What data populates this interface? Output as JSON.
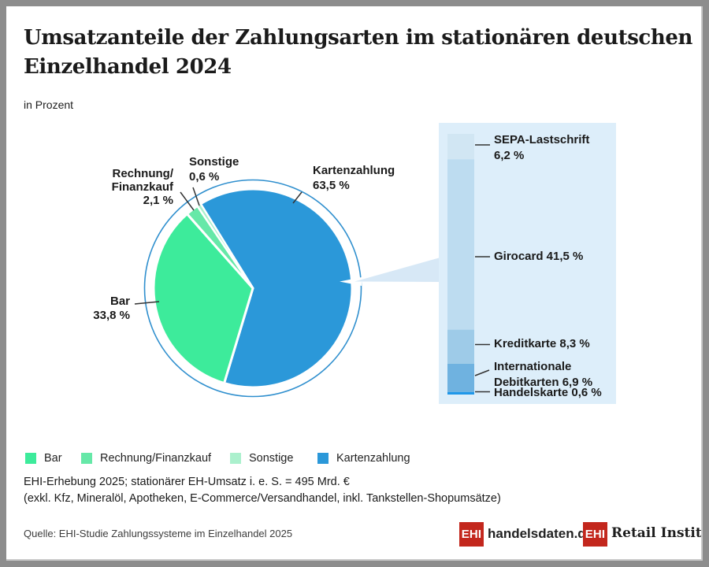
{
  "header": {
    "title_line1": "Umsatzanteile der Zahlungsarten im stationären deutschen",
    "title_line2": "Einzelhandel 2024",
    "subtitle": "in Prozent"
  },
  "chart_data": {
    "type": "pie",
    "title": "Umsatzanteile der Zahlungsarten im stationären deutschen Einzelhandel 2024",
    "unit": "Prozent",
    "series": [
      {
        "name": "Bar",
        "value": 33.8,
        "display": "33,8 %",
        "color": "#3deb9b",
        "label_lines": [
          "Bar",
          "33,8 %"
        ]
      },
      {
        "name": "Rechnung/Finanzkauf",
        "value": 2.1,
        "display": "2,1 %",
        "color": "#66e8a8",
        "label_lines": [
          "Rechnung/",
          "Finanzkauf",
          "2,1 %"
        ]
      },
      {
        "name": "Sonstige",
        "value": 0.6,
        "display": "0,6 %",
        "color": "#abf0cd",
        "label_lines": [
          "Sonstige",
          "0,6 %"
        ]
      },
      {
        "name": "Kartenzahlung",
        "value": 63.5,
        "display": "63,5 %",
        "color": "#2b98d9",
        "label_lines": [
          "Kartenzahlung",
          "63,5 %"
        ]
      }
    ],
    "breakdown_of": "Kartenzahlung",
    "breakdown": [
      {
        "name": "SEPA-Lastschrift",
        "value": 6.2,
        "display": "6,2 %",
        "color": "#d1e6f3",
        "label_lines": [
          "SEPA-Lastschrift",
          "6,2 %"
        ]
      },
      {
        "name": "Girocard",
        "value": 41.5,
        "display": "41,5 %",
        "color": "#bddcf0",
        "label_lines": [
          "Girocard 41,5 %"
        ]
      },
      {
        "name": "Kreditkarte",
        "value": 8.3,
        "display": "8,3 %",
        "color": "#9ecbe8",
        "label_lines": [
          "Kreditkarte 8,3 %"
        ]
      },
      {
        "name": "Internationale Debitkarten",
        "value": 6.9,
        "display": "6,9 %",
        "color": "#6fb2e0",
        "label_lines": [
          "Internationale",
          "Debitkarten 6,9 %"
        ]
      },
      {
        "name": "Handelskarte",
        "value": 0.6,
        "display": "0,6 %",
        "color": "#1f97e9",
        "label_lines": [
          "Handelskarte 0,6 %"
        ]
      }
    ],
    "legend_position": "bottom"
  },
  "legend": {
    "items": [
      {
        "label": "Bar",
        "color": "#3deb9b"
      },
      {
        "label": "Rechnung/Finanzkauf",
        "color": "#66e8a8"
      },
      {
        "label": "Sonstige",
        "color": "#abf0cd"
      },
      {
        "label": "Kartenzahlung",
        "color": "#2b98d9"
      }
    ]
  },
  "footer": {
    "footnote_line1": "EHI-Erhebung 2025; stationärer EH-Umsatz i. e. S. = 495 Mrd. €",
    "footnote_line2": "(exkl. Kfz, Mineralöl, Apotheken, E-Commerce/Versandhandel, inkl. Tankstellen-Shopumsätze)",
    "source": "Quelle: EHI-Studie Zahlungssysteme im Einzelhandel 2025"
  },
  "logos": {
    "ehi_abbr": "EHI",
    "handelsdaten": "handelsdaten.de",
    "retail_institute": "Retail Institute",
    "registered": "®",
    "brand_red": "#c3271d"
  },
  "colors": {
    "panel_background": "#ddeefa",
    "callout_wedge": "#d7e8f6",
    "pie_ring": "#2f8fce",
    "leader_line": "#333333",
    "frame_border": "#8d8d8d"
  }
}
